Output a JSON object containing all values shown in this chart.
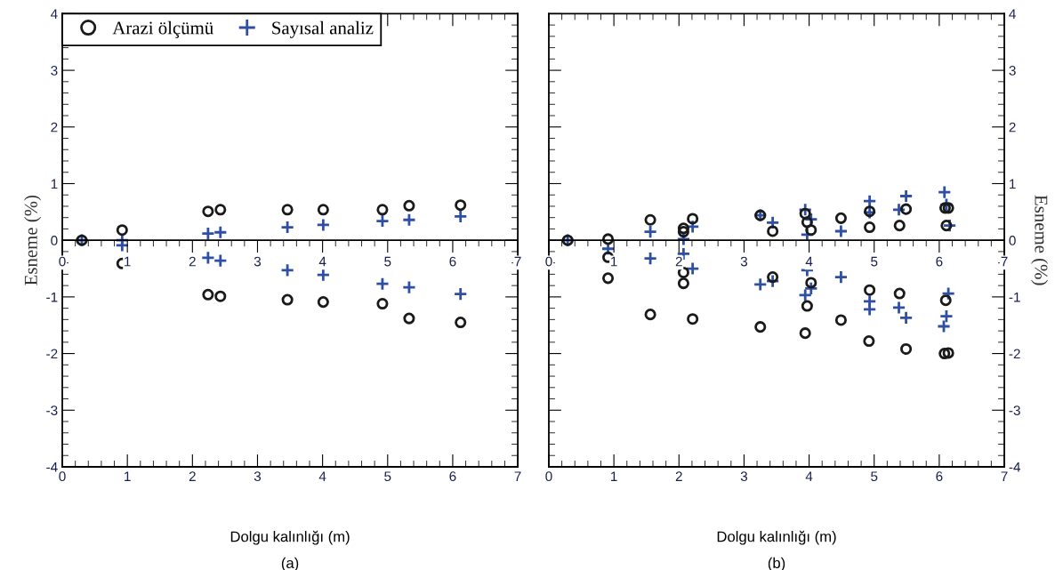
{
  "chart_data": [
    {
      "type": "scatter",
      "xlabel": "Dolgu kalınlığı (m)",
      "ylabel": "Esneme (%)",
      "annotations": [
        "(a)"
      ],
      "legend": "top left",
      "xlim": [
        0,
        7
      ],
      "xticks": [
        0,
        1,
        2,
        3,
        4,
        5,
        6,
        7
      ],
      "x2lim": [
        0,
        7
      ],
      "x2ticks": [
        0,
        1,
        2,
        3,
        4,
        5,
        6,
        7
      ],
      "ylim": [
        -4,
        4
      ],
      "yticks": [
        -4,
        -3,
        -2,
        -1,
        0,
        1,
        2,
        3,
        4
      ],
      "series": [
        {
          "name": "Arazi ölçümü",
          "color": "#1a1a1a",
          "marker": "circle",
          "x": [
            0.3,
            0.92,
            0.92,
            2.24,
            2.24,
            2.43,
            2.43,
            3.46,
            3.46,
            4.01,
            4.01,
            4.92,
            4.92,
            5.33,
            5.33,
            6.12,
            6.12
          ],
          "values": [
            0,
            0.18,
            -0.41,
            0.51,
            -0.96,
            0.54,
            -0.99,
            0.54,
            -1.05,
            0.54,
            -1.09,
            0.54,
            -1.12,
            0.61,
            -1.38,
            0.62,
            -1.45
          ]
        },
        {
          "name": "Sayısal analiz",
          "color": "#2e4fa3",
          "marker": "cross",
          "x": [
            0.3,
            0.92,
            0.92,
            2.24,
            2.24,
            2.43,
            2.43,
            3.46,
            3.46,
            4.01,
            4.01,
            4.92,
            4.92,
            5.33,
            5.33,
            6.12,
            6.12
          ],
          "values": [
            0,
            0,
            -0.09,
            0.12,
            -0.31,
            0.14,
            -0.36,
            0.23,
            -0.53,
            0.27,
            -0.61,
            0.34,
            -0.77,
            0.36,
            -0.83,
            0.42,
            -0.95
          ]
        }
      ]
    },
    {
      "type": "scatter",
      "xlabel": "Dolgu kalınlığı (m)",
      "y2label": "Esneme (%)",
      "annotations": [
        "(b)"
      ],
      "xlim": [
        0,
        7
      ],
      "xticks": [
        0,
        1,
        2,
        3,
        4,
        5,
        6,
        7
      ],
      "x2lim": [
        0,
        7
      ],
      "x2ticks": [
        0,
        1,
        2,
        3,
        4,
        5,
        6,
        7
      ],
      "y2lim": [
        -4,
        4
      ],
      "y2ticks": [
        -4,
        -3,
        -2,
        -1,
        0,
        1,
        2,
        3,
        4
      ],
      "series": [
        {
          "color": "#1a1a1a",
          "marker": "circle",
          "axis": "y2",
          "x": [
            0.29,
            0.91,
            0.91,
            0.91,
            1.56,
            1.56,
            2.07,
            2.07,
            2.07,
            2.07,
            2.21,
            2.21,
            3.25,
            3.25,
            3.44,
            3.44,
            3.94,
            3.94,
            3.97,
            3.97,
            4.03,
            4.03,
            4.49,
            4.49,
            4.93,
            4.93,
            4.93,
            4.92,
            5.39,
            5.39,
            5.49,
            5.49,
            6.09,
            6.14,
            6.11,
            6.1,
            6.08,
            6.14
          ],
          "values": [
            0,
            0.02,
            -0.3,
            -0.67,
            0.36,
            -1.31,
            0.21,
            0.15,
            -0.57,
            -0.76,
            0.38,
            -1.39,
            0.44,
            -1.53,
            0.16,
            -0.65,
            0.47,
            -1.64,
            0.32,
            -1.16,
            0.18,
            -0.75,
            0.39,
            -1.41,
            0.51,
            0.23,
            -0.88,
            -1.78,
            0.26,
            -0.94,
            0.55,
            -1.92,
            0.57,
            0.57,
            0.26,
            -1.06,
            -2.0,
            -1.99
          ]
        },
        {
          "color": "#2e4fa3",
          "marker": "cross",
          "axis": "y2",
          "x": [
            0.29,
            0.91,
            1.56,
            1.56,
            2.07,
            2.07,
            2.21,
            2.21,
            3.25,
            3.25,
            3.44,
            3.44,
            3.94,
            3.94,
            4.03,
            4.03,
            3.97,
            3.97,
            4.49,
            4.49,
            4.93,
            4.93,
            4.93,
            4.93,
            5.38,
            5.38,
            5.49,
            5.49,
            6.08,
            6.11,
            6.16,
            6.14,
            6.11,
            6.07
          ],
          "values": [
            0,
            -0.15,
            0.15,
            -0.32,
            0.02,
            -0.24,
            0.24,
            -0.5,
            0.44,
            -0.78,
            0.31,
            -0.72,
            0.54,
            -0.97,
            0.37,
            -0.85,
            0.1,
            -0.53,
            0.16,
            -0.65,
            0.69,
            0.49,
            -1.08,
            -1.22,
            0.54,
            -1.19,
            0.78,
            -1.37,
            0.85,
            0.63,
            0.26,
            -0.94,
            -1.34,
            -1.52
          ]
        }
      ]
    }
  ]
}
